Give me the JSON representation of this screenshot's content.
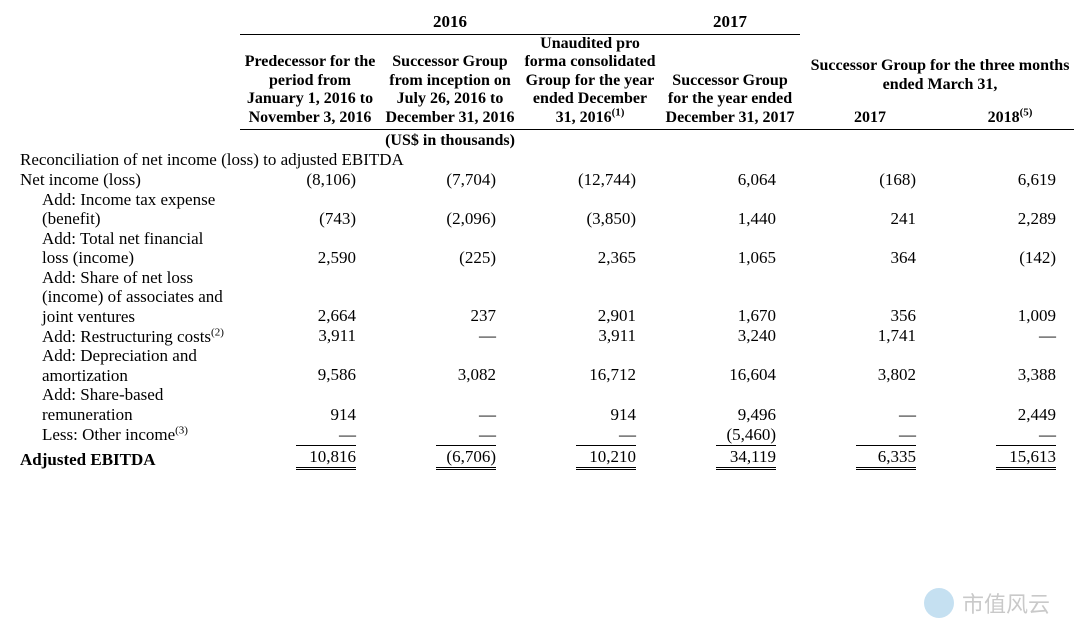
{
  "type": "table",
  "columns": {
    "label_width": 220,
    "data_width": 140,
    "text_align_numeric": "right",
    "font_family": "Times New Roman",
    "base_font_size_pt": 13
  },
  "year_spans": {
    "y2016": "2016",
    "y2017": "2017"
  },
  "headers": {
    "c1": "Predecessor for the period from January 1, 2016 to November 3, 2016",
    "c2": "Successor Group from inception on July 26, 2016 to December 31, 2016",
    "c3_pre": "Unaudited pro forma consolidated Group for the year ended December 31, 2016",
    "c3_sup": "(1)",
    "c4": "Successor Group for the year ended December 31, 2017",
    "c56_top": "Successor Group for the three months ended March 31,",
    "c5": "2017",
    "c6_pre": "2018",
    "c6_sup": "(5)"
  },
  "units": "(US$ in thousands)",
  "section_title": "Reconciliation of net income (loss) to adjusted EBITDA",
  "rows": [
    {
      "label": "Net income (loss)",
      "indent": 0,
      "v": [
        "(8,106)",
        "(7,704)",
        "(12,744)",
        "6,064",
        "(168)",
        "6,619"
      ]
    },
    {
      "label": "Add: Income tax expense (benefit)",
      "indent": 1,
      "v": [
        "(743)",
        "(2,096)",
        "(3,850)",
        "1,440",
        "241",
        "2,289"
      ]
    },
    {
      "label": "Add: Total net financial loss (income)",
      "indent": 1,
      "v": [
        "2,590",
        "(225)",
        "2,365",
        "1,065",
        "364",
        "(142)"
      ]
    },
    {
      "label": "Add: Share of net loss (income) of associates and joint ventures",
      "indent": 1,
      "v": [
        "2,664",
        "237",
        "2,901",
        "1,670",
        "356",
        "1,009"
      ]
    },
    {
      "label_pre": "Add: Restructuring costs",
      "label_sup": "(2)",
      "indent": 1,
      "v": [
        "3,911",
        "—",
        "3,911",
        "3,240",
        "1,741",
        "—"
      ]
    },
    {
      "label": "Add: Depreciation and amortization",
      "indent": 1,
      "v": [
        "9,586",
        "3,082",
        "16,712",
        "16,604",
        "3,802",
        "3,388"
      ]
    },
    {
      "label": "Add: Share-based remuneration",
      "indent": 1,
      "v": [
        "914",
        "—",
        "914",
        "9,496",
        "—",
        "2,449"
      ]
    },
    {
      "label_pre": "Less: Other income",
      "label_sup": "(3)",
      "indent": 1,
      "v": [
        "—",
        "—",
        "—",
        "(5,460)",
        "—",
        "—"
      ]
    }
  ],
  "total": {
    "label": "Adjusted EBITDA",
    "v": [
      "10,816",
      "(6,706)",
      "10,210",
      "34,119",
      "6,335",
      "15,613"
    ]
  },
  "colors": {
    "text": "#000000",
    "background": "#ffffff",
    "rule": "#000000"
  },
  "watermark": {
    "text": "市值风云",
    "logo_color": "#5aa6d8",
    "opacity": 0.35
  }
}
